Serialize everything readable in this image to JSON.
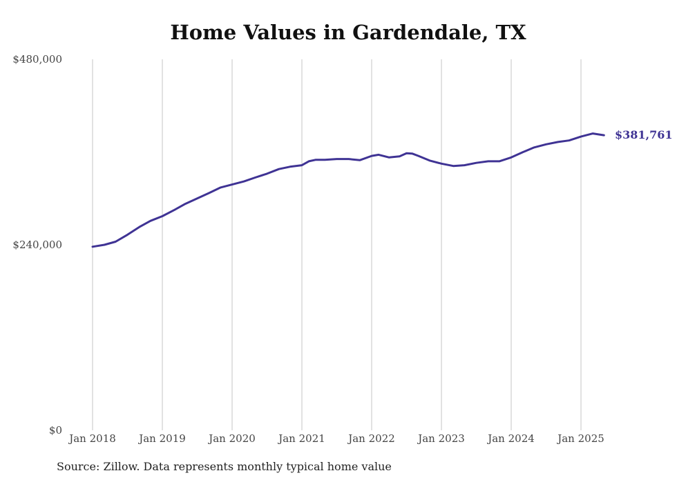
{
  "chart_data": {
    "type": "line",
    "title": "Home Values in Gardendale, TX",
    "xlabel": "",
    "ylabel": "",
    "ylim": [
      0,
      480000
    ],
    "y_ticks": [
      "$0",
      "$240,000",
      "$480,000"
    ],
    "y_tick_values": [
      0,
      240000,
      480000
    ],
    "x_ticks": [
      "Jan 2018",
      "Jan 2019",
      "Jan 2020",
      "Jan 2021",
      "Jan 2022",
      "Jan 2023",
      "Jan 2024",
      "Jan 2025"
    ],
    "grid": "vertical",
    "line_color": "#3f3394",
    "end_label": "$381,761",
    "series": [
      {
        "values": [
          [
            2018.0,
            237500
          ],
          [
            2018.17,
            240000
          ],
          [
            2018.33,
            244000
          ],
          [
            2018.5,
            253000
          ],
          [
            2018.67,
            263000
          ],
          [
            2018.83,
            271000
          ],
          [
            2019.0,
            277000
          ],
          [
            2019.17,
            285000
          ],
          [
            2019.33,
            293000
          ],
          [
            2019.5,
            300000
          ],
          [
            2019.67,
            307000
          ],
          [
            2019.83,
            314000
          ],
          [
            2020.0,
            318000
          ],
          [
            2020.17,
            322000
          ],
          [
            2020.33,
            327000
          ],
          [
            2020.5,
            332000
          ],
          [
            2020.67,
            338000
          ],
          [
            2020.83,
            341000
          ],
          [
            2021.0,
            343000
          ],
          [
            2021.1,
            348000
          ],
          [
            2021.2,
            350000
          ],
          [
            2021.33,
            350000
          ],
          [
            2021.5,
            351000
          ],
          [
            2021.67,
            351000
          ],
          [
            2021.83,
            349500
          ],
          [
            2022.0,
            355000
          ],
          [
            2022.1,
            356500
          ],
          [
            2022.25,
            353000
          ],
          [
            2022.4,
            354500
          ],
          [
            2022.5,
            358500
          ],
          [
            2022.58,
            358000
          ],
          [
            2022.67,
            355000
          ],
          [
            2022.83,
            349000
          ],
          [
            2023.0,
            345000
          ],
          [
            2023.17,
            342000
          ],
          [
            2023.33,
            343000
          ],
          [
            2023.5,
            346000
          ],
          [
            2023.67,
            348000
          ],
          [
            2023.83,
            348000
          ],
          [
            2024.0,
            353000
          ],
          [
            2024.17,
            360000
          ],
          [
            2024.33,
            366000
          ],
          [
            2024.5,
            370000
          ],
          [
            2024.67,
            373000
          ],
          [
            2024.83,
            375000
          ],
          [
            2025.0,
            380000
          ],
          [
            2025.17,
            384000
          ],
          [
            2025.33,
            381761
          ]
        ]
      }
    ]
  },
  "footer": {
    "source": "Source: Zillow. Data represents monthly typical home value"
  }
}
